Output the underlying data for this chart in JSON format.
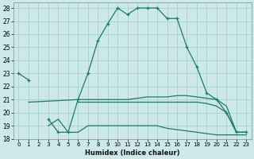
{
  "xlabel": "Humidex (Indice chaleur)",
  "background_color": "#cce8e8",
  "grid_color": "#aad4d4",
  "line_color": "#1a7a6e",
  "xlim": [
    -0.5,
    23.5
  ],
  "ylim": [
    18,
    28.4
  ],
  "xticks": [
    0,
    1,
    2,
    3,
    4,
    5,
    6,
    7,
    8,
    9,
    10,
    11,
    12,
    13,
    14,
    15,
    16,
    17,
    18,
    19,
    20,
    21,
    22,
    23
  ],
  "yticks": [
    18,
    19,
    20,
    21,
    22,
    23,
    24,
    25,
    26,
    27,
    28
  ],
  "series": [
    {
      "x": [
        0,
        1,
        2,
        3,
        4,
        5,
        6,
        7,
        8,
        9,
        10,
        11,
        12,
        13,
        14,
        15,
        16,
        17,
        18,
        19,
        20,
        21,
        22,
        23
      ],
      "y": [
        23,
        22.5,
        null,
        19.5,
        18.5,
        18.5,
        21,
        23,
        25.5,
        26.8,
        28,
        27.5,
        28,
        28,
        28,
        27.2,
        27.2,
        25,
        23.5,
        21.5,
        21,
        20,
        18.5,
        18.5
      ],
      "marker": true
    },
    {
      "x": [
        1,
        6,
        7,
        8,
        9,
        10,
        11,
        12,
        13,
        14,
        15,
        16,
        17,
        18,
        19,
        20,
        21,
        22,
        23
      ],
      "y": [
        20.8,
        21,
        21,
        21,
        21,
        21,
        21,
        21.1,
        21.2,
        21.2,
        21.2,
        21.3,
        21.3,
        21.2,
        21.1,
        21,
        20.5,
        18.5,
        18.5
      ],
      "marker": false
    },
    {
      "x": [
        6,
        7,
        8,
        9,
        10,
        11,
        12,
        13,
        14,
        15,
        16,
        17,
        18,
        19,
        20,
        21,
        22,
        23
      ],
      "y": [
        20.8,
        20.8,
        20.8,
        20.8,
        20.8,
        20.8,
        20.8,
        20.8,
        20.8,
        20.8,
        20.8,
        20.8,
        20.8,
        20.7,
        20.5,
        20,
        18.5,
        18.5
      ],
      "marker": false
    },
    {
      "x": [
        3,
        4,
        5,
        6,
        7,
        8,
        9,
        10,
        11,
        12,
        13,
        14,
        15,
        16,
        17,
        18,
        19,
        20,
        21,
        22,
        23
      ],
      "y": [
        19,
        19.5,
        18.5,
        18.5,
        19,
        19,
        19,
        19,
        19,
        19,
        19,
        19,
        18.8,
        18.7,
        18.6,
        18.5,
        18.4,
        18.3,
        18.3,
        18.3,
        18.3
      ],
      "marker": false
    }
  ]
}
